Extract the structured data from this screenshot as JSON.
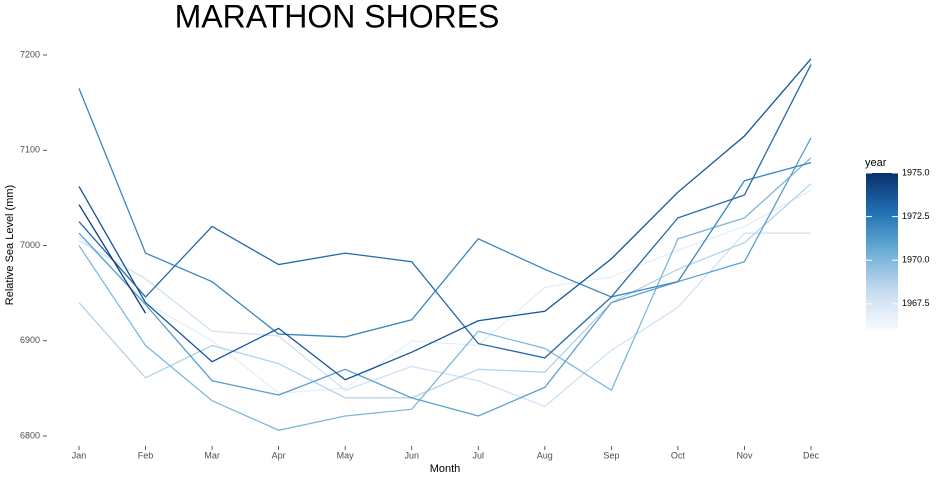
{
  "chart_data": {
    "type": "line",
    "title": "MARATHON SHORES",
    "x_label": "Month",
    "y_label": "Relative Sea Level (mm)",
    "categories": [
      "Jan",
      "Feb",
      "Mar",
      "Apr",
      "May",
      "Jun",
      "Jul",
      "Aug",
      "Sep",
      "Oct",
      "Nov",
      "Dec"
    ],
    "ylim": [
      6790,
      7210
    ],
    "yticks": [
      6800,
      6900,
      7000,
      7100,
      7200
    ],
    "grid": false,
    "legend": {
      "title": "year",
      "position": "right",
      "colorlim": [
        1966,
        1975
      ],
      "colors": [
        "#f7fbff",
        "#c6dbef",
        "#6baed6",
        "#2171b5",
        "#08306b"
      ],
      "ticks": [
        {
          "value": 1967.5,
          "label": "1967.5"
        },
        {
          "value": 1970,
          "label": "1970.0"
        },
        {
          "value": 1972.5,
          "label": "1972.5"
        },
        {
          "value": 1975,
          "label": "1975.0"
        }
      ]
    },
    "series": [
      {
        "color": "#e3eef9",
        "values": [
          7010,
          6940,
          6900,
          6845,
          6850,
          6900,
          6895,
          6956,
          6967,
          6995,
          7020,
          7058
        ]
      },
      {
        "color": "#d0e2f3",
        "values": [
          7005,
          6965,
          6910,
          6905,
          6848,
          6873,
          6858,
          6831,
          6890,
          6935,
          7013,
          7013
        ]
      },
      {
        "color": "#b3d3e8",
        "values": [
          6940,
          6861,
          6895,
          6876,
          6840,
          6840,
          6870,
          6867,
          6940,
          6975,
          7003,
          7065
        ]
      },
      {
        "color": "#7fb8da",
        "values": [
          7000,
          6895,
          6837,
          6806,
          6821,
          6828,
          6910,
          6892,
          6848,
          7007,
          7029,
          7092
        ]
      },
      {
        "color": "#5a9fce",
        "values": [
          7013,
          6938,
          6858,
          6843,
          6870,
          6840,
          6821,
          6851,
          6940,
          6962,
          6983,
          7113
        ]
      },
      {
        "color": "#3a86c0",
        "values": [
          7165,
          6992,
          6962,
          6907,
          6904,
          6922,
          7007,
          6975,
          6946,
          6962,
          7068,
          7087
        ]
      },
      {
        "color": "#2469ab",
        "values": [
          7025,
          6946,
          7020,
          6980,
          6992,
          6983,
          6897,
          6882,
          6946,
          7029,
          7053,
          7190
        ]
      },
      {
        "color": "#14549a",
        "values": [
          7062,
          6940,
          6878,
          6913,
          6859,
          6888,
          6921,
          6931,
          6986,
          7056,
          7115,
          7196
        ]
      },
      {
        "color": "#0b3d7a",
        "values": [
          7043,
          6929,
          null,
          null,
          null,
          null,
          null,
          null,
          null,
          null,
          null,
          null
        ]
      }
    ]
  }
}
